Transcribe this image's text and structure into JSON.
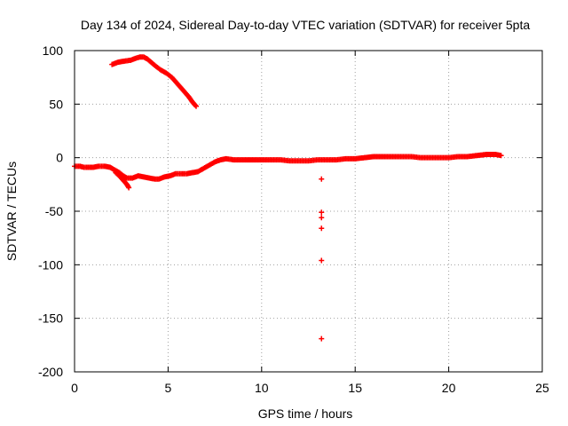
{
  "chart_data": {
    "type": "scatter",
    "title": "Day 134 of 2024, Sidereal Day-to-day VTEC variation (SDTVAR) for receiver 5pta",
    "xlabel": "GPS time / hours",
    "ylabel": "SDTVAR / TECUs",
    "xlim": [
      0,
      25
    ],
    "ylim": [
      -200,
      100
    ],
    "xticks": [
      "0",
      "5",
      "10",
      "15",
      "20",
      "25"
    ],
    "yticks": [
      "100",
      "50",
      "0",
      "-50",
      "-100",
      "-150",
      "-200"
    ],
    "grid": true,
    "marker": "+",
    "color": "#ff0000",
    "series": [
      {
        "name": "upper arc",
        "points": [
          [
            2.0,
            87
          ],
          [
            2.3,
            89
          ],
          [
            2.6,
            90
          ],
          [
            3.0,
            91
          ],
          [
            3.3,
            93
          ],
          [
            3.5,
            94
          ],
          [
            3.7,
            94
          ],
          [
            3.9,
            92
          ],
          [
            4.1,
            89
          ],
          [
            4.3,
            86
          ],
          [
            4.6,
            82
          ],
          [
            4.9,
            79
          ],
          [
            5.2,
            75
          ],
          [
            5.5,
            69
          ],
          [
            5.8,
            63
          ],
          [
            6.1,
            57
          ],
          [
            6.3,
            52
          ],
          [
            6.5,
            48
          ]
        ]
      },
      {
        "name": "main track",
        "points": [
          [
            0.0,
            -8
          ],
          [
            0.3,
            -8
          ],
          [
            0.5,
            -9
          ],
          [
            0.8,
            -9
          ],
          [
            1.0,
            -9
          ],
          [
            1.3,
            -8
          ],
          [
            1.6,
            -8
          ],
          [
            1.9,
            -9
          ],
          [
            2.1,
            -11
          ],
          [
            2.4,
            -14
          ],
          [
            2.6,
            -17
          ],
          [
            2.8,
            -19
          ],
          [
            3.1,
            -19
          ],
          [
            3.4,
            -17
          ],
          [
            3.7,
            -18
          ],
          [
            4.0,
            -19
          ],
          [
            4.3,
            -20
          ],
          [
            4.5,
            -20
          ],
          [
            4.8,
            -18
          ],
          [
            5.1,
            -17
          ],
          [
            5.4,
            -15
          ],
          [
            5.7,
            -15
          ],
          [
            6.0,
            -15
          ],
          [
            6.3,
            -14
          ],
          [
            6.6,
            -13
          ],
          [
            6.9,
            -10
          ],
          [
            7.2,
            -7
          ],
          [
            7.5,
            -4
          ],
          [
            7.8,
            -2
          ],
          [
            8.1,
            -1
          ],
          [
            8.5,
            -2
          ],
          [
            9.0,
            -2
          ],
          [
            9.5,
            -2
          ],
          [
            10.0,
            -2
          ],
          [
            10.5,
            -2
          ],
          [
            11.0,
            -2
          ],
          [
            11.5,
            -3
          ],
          [
            12.0,
            -3
          ],
          [
            12.5,
            -3
          ],
          [
            13.0,
            -2
          ],
          [
            13.5,
            -2
          ],
          [
            14.0,
            -2
          ],
          [
            14.5,
            -1
          ],
          [
            15.0,
            -1
          ],
          [
            15.5,
            0
          ],
          [
            16.0,
            1
          ],
          [
            16.5,
            1
          ],
          [
            17.0,
            1
          ],
          [
            17.5,
            1
          ],
          [
            18.0,
            1
          ],
          [
            18.5,
            0
          ],
          [
            19.0,
            0
          ],
          [
            19.5,
            0
          ],
          [
            20.0,
            0
          ],
          [
            20.5,
            1
          ],
          [
            21.0,
            1
          ],
          [
            21.5,
            2
          ],
          [
            22.0,
            3
          ],
          [
            22.5,
            3
          ],
          [
            22.8,
            2
          ]
        ]
      },
      {
        "name": "descending branch",
        "points": [
          [
            2.2,
            -14
          ],
          [
            2.4,
            -17
          ],
          [
            2.6,
            -21
          ],
          [
            2.8,
            -25
          ],
          [
            2.9,
            -28
          ]
        ]
      },
      {
        "name": "outliers",
        "points": [
          [
            13.2,
            -20
          ],
          [
            13.2,
            -51
          ],
          [
            13.2,
            -56
          ],
          [
            13.2,
            -66
          ],
          [
            13.2,
            -96
          ],
          [
            13.2,
            -169
          ]
        ]
      }
    ]
  }
}
